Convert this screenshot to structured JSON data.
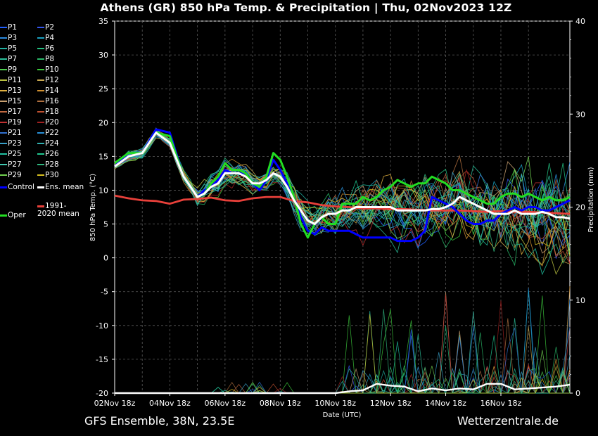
{
  "header": {
    "title": "Athens  (GR)  850 hPa Temp. & Precipitation | Thu, 02Nov2023 12Z"
  },
  "footer": {
    "left": "GFS Ensemble, 38N, 23.5E",
    "right": "Wetterzentrale.de"
  },
  "chart_data": {
    "type": "line",
    "xlabel": "Date (UTC)",
    "ylabel": "850 hPa Temp. (°C)",
    "y2label": "Precipitation (mm)",
    "ylim": [
      -20,
      35
    ],
    "y2lim": [
      0,
      40
    ],
    "y_ticks": [
      "35",
      "30",
      "25",
      "20",
      "15",
      "10",
      "5",
      "0",
      "-5",
      "-10",
      "-15",
      "-20"
    ],
    "y2_ticks": [
      "40",
      "30",
      "20",
      "10",
      "0"
    ],
    "x_ticks": [
      "02Nov 18z",
      "04Nov 18z",
      "06Nov 18z",
      "08Nov 18z",
      "10Nov 18z",
      "12Nov 18z",
      "14Nov 18z",
      "16Nov 18z"
    ],
    "grid": true,
    "legend_position": "left",
    "colors": {
      "control": "#0000ff",
      "ens_mean": "#ffffff",
      "climate": "#e8403a",
      "oper": "#22dd22"
    },
    "legend": [
      {
        "label": "P1",
        "color": "#1f5fff"
      },
      {
        "label": "P2",
        "color": "#3355ee"
      },
      {
        "label": "P3",
        "color": "#2a8adf"
      },
      {
        "label": "P4",
        "color": "#1aa0c0"
      },
      {
        "label": "P5",
        "color": "#20b0a0"
      },
      {
        "label": "P6",
        "color": "#22c080"
      },
      {
        "label": "P7",
        "color": "#2ac09a"
      },
      {
        "label": "P8",
        "color": "#28b868"
      },
      {
        "label": "P9",
        "color": "#4ecf4e"
      },
      {
        "label": "P10",
        "color": "#3cc83c"
      },
      {
        "label": "P11",
        "color": "#b8c040"
      },
      {
        "label": "P12",
        "color": "#c8a850"
      },
      {
        "label": "P13",
        "color": "#e0b040"
      },
      {
        "label": "P14",
        "color": "#d09030"
      },
      {
        "label": "P15",
        "color": "#c8a070"
      },
      {
        "label": "P16",
        "color": "#b07040"
      },
      {
        "label": "P17",
        "color": "#c06840"
      },
      {
        "label": "P18",
        "color": "#c05030"
      },
      {
        "label": "P19",
        "color": "#c03030"
      },
      {
        "label": "P20",
        "color": "#a02020"
      },
      {
        "label": "P21",
        "color": "#3070d0"
      },
      {
        "label": "P22",
        "color": "#2890d8"
      },
      {
        "label": "P23",
        "color": "#38a0c8"
      },
      {
        "label": "P24",
        "color": "#30b0b0"
      },
      {
        "label": "P25",
        "color": "#20c0a0"
      },
      {
        "label": "P26",
        "color": "#20c890"
      },
      {
        "label": "P27",
        "color": "#40c8b0"
      },
      {
        "label": "P28",
        "color": "#30b880"
      },
      {
        "label": "P29",
        "color": "#70d050"
      },
      {
        "label": "P30",
        "color": "#d8c020"
      },
      {
        "label": "Control",
        "color": "#0000ff"
      },
      {
        "label": "Ens. mean",
        "color": "#ffffff"
      },
      {
        "label": "1991-2020 mean",
        "color": "#e8403a"
      },
      {
        "label": "Oper",
        "color": "#22dd22"
      }
    ],
    "series": [
      {
        "name": "Ens. mean",
        "x": [
          0,
          1,
          2,
          3,
          4,
          5,
          6,
          6.5,
          7,
          7.5,
          8,
          8.5,
          9,
          9.5,
          10,
          10.5,
          11,
          11.5,
          12,
          12.5,
          13,
          13.5,
          14,
          14.5,
          15,
          15.5,
          16,
          16.5,
          17,
          17.5,
          18,
          18.5,
          19,
          19.5,
          20,
          20.5,
          21,
          21.5,
          22,
          22.5,
          23,
          23.5,
          24,
          24.5,
          25,
          25.5,
          26,
          26.5,
          27,
          27.5,
          28,
          28.5,
          29,
          29.5,
          30,
          30.5,
          31,
          31.5,
          32,
          32.5,
          33
        ],
        "values": [
          13.5,
          15,
          15.5,
          18.5,
          17,
          12,
          9,
          9.5,
          10.5,
          11,
          12.5,
          12.5,
          12.5,
          12,
          11,
          11,
          11.5,
          12.5,
          12,
          10.5,
          8.5,
          7,
          5.5,
          5,
          6,
          6.5,
          6.5,
          7,
          7,
          7.5,
          7.5,
          7.5,
          7.5,
          7.5,
          7.5,
          7,
          7,
          7,
          7,
          7,
          7.2,
          7.2,
          7.5,
          8,
          9,
          8.5,
          8,
          7.5,
          7,
          6.5,
          6.5,
          6.5,
          7,
          6.5,
          6.5,
          6.5,
          6.8,
          6.5,
          6,
          6,
          5.8
        ]
      },
      {
        "name": "Control",
        "x": [
          0,
          1,
          2,
          3,
          4,
          5,
          6,
          6.5,
          7,
          7.5,
          8,
          8.5,
          9,
          9.5,
          10,
          10.5,
          11,
          11.5,
          12,
          12.5,
          13,
          13.5,
          14,
          14.5,
          15,
          15.5,
          16,
          16.5,
          17,
          17.5,
          18,
          18.5,
          19,
          19.5,
          20,
          20.5,
          21,
          21.5,
          22,
          22.5,
          23,
          23.5,
          24,
          24.5,
          25,
          25.5,
          26,
          26.5,
          27,
          27.5,
          28,
          28.5,
          29,
          29.5,
          30,
          30.5,
          31,
          31.5,
          32,
          32.5,
          33
        ],
        "values": [
          13.5,
          15.5,
          15.5,
          19,
          18.5,
          12,
          9,
          10,
          10.5,
          11.5,
          13,
          12.5,
          12.5,
          12.5,
          11,
          10,
          11.5,
          14.5,
          13,
          11,
          9,
          6,
          4,
          3.5,
          4.5,
          4,
          4,
          4,
          4,
          3.5,
          3,
          3,
          3,
          3,
          3,
          2.5,
          2.5,
          2.5,
          3,
          4,
          9,
          8.5,
          8,
          7.5,
          6.5,
          5.5,
          5,
          5,
          5.5,
          5.5,
          6.5,
          7,
          7.5,
          7,
          7.5,
          7.5,
          7,
          7,
          7.5,
          8,
          8.5
        ]
      },
      {
        "name": "Oper",
        "x": [
          0,
          1,
          2,
          3,
          4,
          5,
          6,
          6.5,
          7,
          7.5,
          8,
          8.5,
          9,
          9.5,
          10,
          10.5,
          11,
          11.5,
          12,
          12.5,
          13,
          13.5,
          14,
          14.5,
          15,
          15.5,
          16,
          16.5,
          17,
          17.5,
          18,
          18.5,
          19,
          19.5,
          20,
          20.5,
          21,
          21.5,
          22,
          22.5,
          23,
          23.5,
          24,
          24.5,
          25,
          25.5,
          26,
          26.5,
          27,
          27.5,
          28,
          28.5,
          29,
          29.5,
          30,
          30.5,
          31,
          31.5,
          32,
          32.5,
          33
        ],
        "values": [
          14,
          15.5,
          15.5,
          18.5,
          18,
          12,
          9,
          9.5,
          11,
          12,
          14,
          13,
          13,
          12.5,
          11,
          10.5,
          12,
          15.5,
          14.5,
          12,
          9,
          5,
          3,
          5,
          6,
          5,
          5,
          8,
          8,
          8,
          9,
          8.5,
          9,
          10,
          10.5,
          11.5,
          11,
          10.5,
          11,
          11,
          12,
          11.5,
          11,
          10,
          10,
          9.5,
          9,
          8.5,
          8,
          8,
          9,
          9.5,
          9.5,
          9,
          9.5,
          9,
          8.5,
          9,
          8.5,
          8.5,
          9
        ]
      },
      {
        "name": "1991-2020 mean",
        "x": [
          0,
          1,
          2,
          3,
          4,
          5,
          6,
          7,
          8,
          9,
          10,
          11,
          12,
          13,
          14,
          15,
          16,
          17,
          18,
          19,
          20,
          21,
          22,
          23,
          24,
          25,
          26,
          27,
          28,
          29,
          30,
          31,
          32,
          33
        ],
        "values": [
          9.2,
          8.8,
          8.5,
          8.4,
          8,
          8.6,
          8.7,
          8.9,
          8.5,
          8.4,
          8.8,
          9,
          9,
          8.4,
          8.2,
          7.8,
          7.6,
          7.5,
          7.3,
          7.3,
          7.2,
          7.2,
          7.1,
          7.0,
          7.0,
          7.0,
          6.9,
          6.8,
          6.9,
          6.8,
          6.8,
          6.7,
          6.6,
          6.5
        ]
      },
      {
        "name": "Precip mean",
        "x": [
          0,
          4,
          8,
          12,
          13,
          15,
          16,
          17,
          18,
          19,
          20,
          21,
          22,
          23,
          24,
          25,
          26,
          27,
          28,
          29,
          30,
          31,
          32,
          33
        ],
        "values": [
          0,
          0,
          0,
          0,
          0,
          0,
          0,
          0.2,
          0.3,
          1,
          0.8,
          0.7,
          0.2,
          0.5,
          0.3,
          0.5,
          0.4,
          1,
          1,
          0.4,
          0.5,
          0.6,
          0.7,
          0.9
        ]
      }
    ]
  }
}
